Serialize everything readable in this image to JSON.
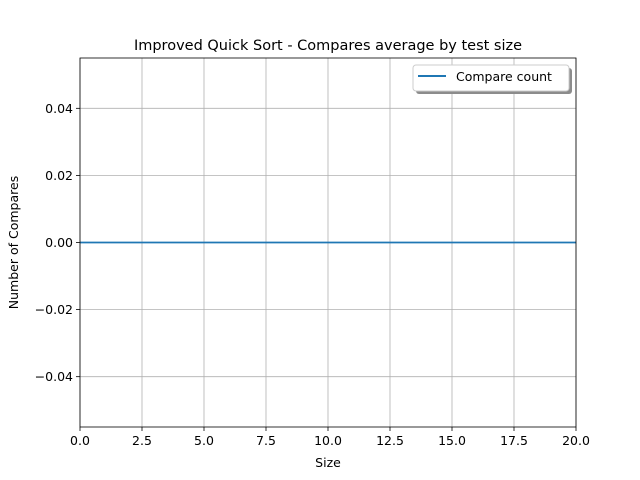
{
  "chart_data": {
    "type": "line",
    "title": "Improved Quick Sort - Compares average by test size",
    "xlabel": "Size",
    "ylabel": "Number of Compares",
    "xlim": [
      0,
      20
    ],
    "ylim": [
      -0.055,
      0.055
    ],
    "xticks": [
      0,
      2.5,
      5,
      7.5,
      10,
      12.5,
      15,
      17.5,
      20
    ],
    "xtick_labels": [
      "0.0",
      "2.5",
      "5.0",
      "7.5",
      "10.0",
      "12.5",
      "15.0",
      "17.5",
      "20.0"
    ],
    "yticks": [
      -0.04,
      -0.02,
      0.0,
      0.02,
      0.04
    ],
    "ytick_labels": [
      "−0.04",
      "−0.02",
      "0.00",
      "0.02",
      "0.04"
    ],
    "grid": true,
    "legend_position": "upper right",
    "series": [
      {
        "name": "Compare count",
        "color": "#1f77b4",
        "x": [
          0,
          20
        ],
        "y": [
          0,
          0
        ]
      }
    ]
  }
}
